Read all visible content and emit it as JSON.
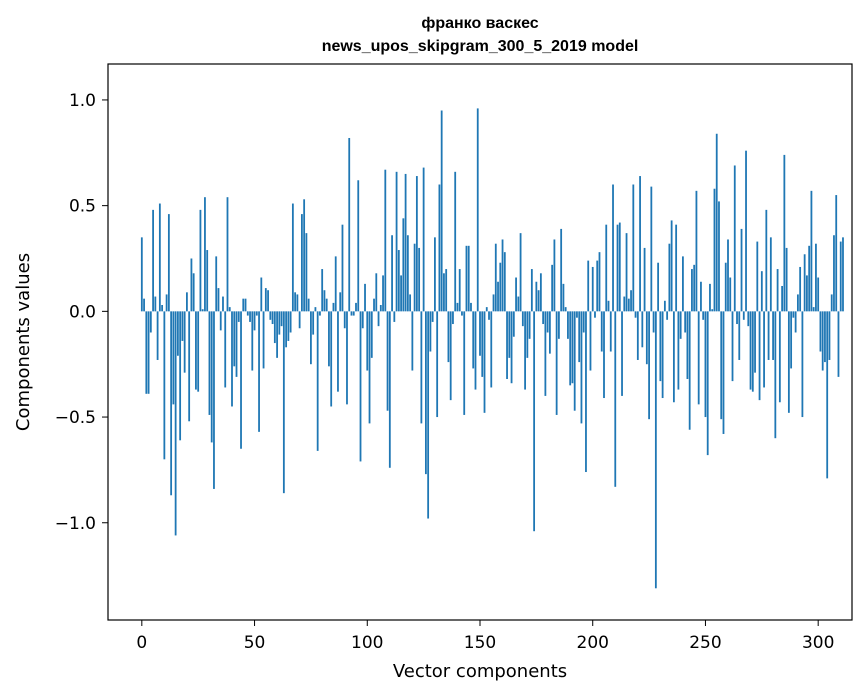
{
  "chart_data": {
    "type": "bar",
    "title_line1": "франко васкес",
    "title_line2": "news_upos_skipgram_300_5_2019 model",
    "xlabel": "Vector components",
    "ylabel": "Components values",
    "xlim": [
      -15,
      315
    ],
    "ylim": [
      -1.46,
      1.17
    ],
    "xticks": [
      0,
      50,
      100,
      150,
      200,
      250,
      300
    ],
    "xtick_labels": [
      "0",
      "50",
      "100",
      "150",
      "200",
      "250",
      "300"
    ],
    "yticks": [
      -1.0,
      -0.5,
      0.0,
      0.5,
      1.0
    ],
    "ytick_labels": [
      "−1.0",
      "−0.5",
      "0.0",
      "0.5",
      "1.0"
    ],
    "bar_color": "#1f77b4",
    "grid": false,
    "values": [
      0.35,
      0.06,
      -0.39,
      -0.39,
      -0.1,
      0.48,
      0.07,
      -0.23,
      0.51,
      0.03,
      -0.7,
      0.08,
      0.46,
      -0.87,
      -0.44,
      -1.06,
      -0.21,
      -0.61,
      -0.14,
      -0.29,
      0.09,
      -0.52,
      0.25,
      0.18,
      -0.37,
      -0.38,
      0.48,
      0.01,
      0.54,
      0.29,
      -0.49,
      -0.62,
      -0.84,
      0.26,
      0.11,
      -0.09,
      0.07,
      -0.36,
      0.54,
      0.02,
      -0.45,
      -0.26,
      -0.31,
      -0.05,
      -0.65,
      0.06,
      0.06,
      -0.02,
      -0.05,
      -0.28,
      -0.09,
      -0.02,
      -0.57,
      0.16,
      -0.27,
      0.11,
      0.1,
      -0.04,
      -0.06,
      -0.15,
      -0.22,
      -0.11,
      -0.07,
      -0.86,
      -0.17,
      -0.14,
      -0.1,
      0.51,
      0.09,
      0.08,
      -0.08,
      0.46,
      0.53,
      0.37,
      0.06,
      -0.25,
      -0.11,
      0.02,
      -0.66,
      -0.02,
      0.2,
      0.1,
      0.06,
      -0.26,
      -0.45,
      0.04,
      0.26,
      -0.38,
      0.09,
      0.41,
      -0.08,
      -0.44,
      0.82,
      -0.02,
      -0.02,
      0.04,
      0.62,
      -0.71,
      -0.08,
      0.13,
      -0.28,
      -0.53,
      -0.22,
      0.06,
      0.18,
      -0.07,
      0.03,
      0.17,
      0.67,
      -0.47,
      -0.74,
      0.36,
      -0.05,
      0.66,
      0.29,
      0.17,
      0.44,
      0.65,
      0.36,
      0.08,
      -0.28,
      0.32,
      0.64,
      0.3,
      -0.53,
      0.68,
      -0.77,
      -0.98,
      -0.19,
      -0.05,
      0.35,
      -0.5,
      0.6,
      0.95,
      0.18,
      0.2,
      -0.24,
      -0.42,
      -0.06,
      0.66,
      0.04,
      0.2,
      -0.02,
      -0.49,
      0.31,
      0.31,
      0.04,
      -0.27,
      -0.37,
      0.96,
      -0.21,
      -0.31,
      -0.48,
      0.02,
      -0.04,
      -0.36,
      0.08,
      0.32,
      0.14,
      0.23,
      0.34,
      0.28,
      -0.32,
      -0.22,
      -0.34,
      -0.12,
      0.16,
      0.07,
      0.37,
      -0.07,
      -0.37,
      -0.22,
      -0.13,
      0.2,
      -1.04,
      0.14,
      0.1,
      0.18,
      -0.06,
      -0.4,
      -0.1,
      -0.2,
      0.22,
      0.34,
      -0.49,
      -0.13,
      0.39,
      0.13,
      0.02,
      -0.13,
      -0.35,
      -0.34,
      -0.47,
      -0.03,
      -0.24,
      -0.53,
      -0.1,
      -0.76,
      0.24,
      -0.28,
      0.21,
      -0.03,
      0.24,
      0.28,
      -0.19,
      -0.41,
      0.41,
      0.05,
      -0.19,
      0.6,
      -0.83,
      0.41,
      0.42,
      -0.4,
      0.07,
      0.37,
      0.06,
      0.1,
      0.6,
      -0.03,
      -0.23,
      0.64,
      -0.17,
      0.3,
      -0.25,
      -0.51,
      0.59,
      -0.1,
      -1.31,
      0.23,
      -0.33,
      -0.41,
      0.05,
      -0.04,
      0.32,
      0.43,
      -0.43,
      0.41,
      -0.37,
      -0.13,
      0.26,
      -0.1,
      -0.32,
      -0.56,
      0.2,
      0.22,
      0.57,
      -0.44,
      0.14,
      -0.04,
      -0.5,
      -0.68,
      0.13,
      0.01,
      0.58,
      0.84,
      0.52,
      -0.51,
      -0.58,
      0.23,
      0.34,
      0.16,
      -0.33,
      0.69,
      -0.06,
      -0.23,
      0.39,
      -0.04,
      0.76,
      -0.07,
      -0.37,
      -0.38,
      -0.29,
      0.33,
      -0.42,
      0.19,
      -0.36,
      0.48,
      -0.23,
      0.35,
      -0.23,
      -0.6,
      0.2,
      -0.43,
      0.12,
      0.74,
      0.3,
      -0.48,
      -0.27,
      -0.03,
      -0.1,
      0.08,
      0.21,
      -0.5,
      0.27,
      0.17,
      0.31,
      0.57,
      0.02,
      0.32,
      0.16,
      -0.19,
      -0.28,
      -0.24,
      -0.79,
      -0.23,
      0.08,
      0.36,
      0.55,
      -0.31,
      0.33,
      0.35
    ]
  }
}
